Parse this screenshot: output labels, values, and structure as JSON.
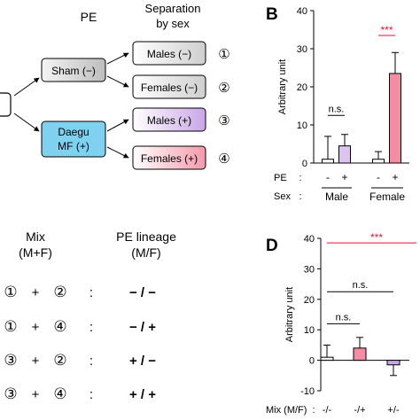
{
  "flow": {
    "title_pe": "PE",
    "title_sep_line1": "Separation",
    "title_sep_line2": "by sex",
    "sham": "Sham (−)",
    "daegu_line1": "Daegu",
    "daegu_line2": "MF (+)",
    "groups": [
      {
        "label": "Males  (−)",
        "num": "①",
        "color": "#d8d8d8"
      },
      {
        "label": "Females (−)",
        "num": "②",
        "color": "#d8d8d8"
      },
      {
        "label": "Males (+)",
        "num": "③",
        "color": "#c9a6e6"
      },
      {
        "label": "Females (+)",
        "num": "④",
        "color": "#f29aab"
      }
    ]
  },
  "mix_table": {
    "header_mix_line1": "Mix",
    "header_mix_line2": "(M+F)",
    "header_lineage_line1": "PE lineage",
    "header_lineage_line2": "(M/F)",
    "rows": [
      {
        "a": "①",
        "plus": "+",
        "b": "②",
        "colon": ":",
        "lineage": "− / −"
      },
      {
        "a": "①",
        "plus": "+",
        "b": "④",
        "colon": ":",
        "lineage": "− / +"
      },
      {
        "a": "③",
        "plus": "+",
        "b": "②",
        "colon": ":",
        "lineage": "+ / −"
      },
      {
        "a": "③",
        "plus": "+",
        "b": "④",
        "colon": ":",
        "lineage": "+ / +"
      }
    ]
  },
  "chart_data": [
    {
      "panel": "B",
      "type": "bar",
      "ylabel": "Arbitrary unit",
      "ylim": [
        0,
        40
      ],
      "yticks": [
        0,
        10,
        20,
        30,
        40
      ],
      "categories": [
        "Male -",
        "Male +",
        "Female -",
        "Female +"
      ],
      "values": [
        1,
        4.5,
        1,
        23.5
      ],
      "errors": [
        6,
        3,
        2,
        5.5
      ],
      "colors": [
        "#ffffff",
        "#dcc3f0",
        "#ffffff",
        "#f48ca4"
      ],
      "row1_label": "PE",
      "row1_colon": ":",
      "row1_values": [
        "-",
        "+",
        "-",
        "+"
      ],
      "row2_label": "Sex",
      "row2_colon": ":",
      "groups": [
        "Male",
        "Female"
      ],
      "annotations": [
        {
          "text": "n.s.",
          "color": "#000000"
        },
        {
          "text": "***",
          "color": "#e8112d"
        }
      ]
    },
    {
      "panel": "D",
      "type": "bar",
      "ylabel": "Arbitrary unit",
      "ylim": [
        -10,
        40
      ],
      "yticks": [
        -10,
        0,
        10,
        20,
        30,
        40
      ],
      "categories": [
        "-/-",
        "-/+",
        "+/-"
      ],
      "values": [
        1,
        4,
        -1.5
      ],
      "errors": [
        4,
        3.5,
        3.5
      ],
      "colors": [
        "#ffffff",
        "#f48ca4",
        "#c9a6e6"
      ],
      "xaxis_label": "Mix (M/F)",
      "xaxis_colon": ":",
      "annotations": [
        {
          "text": "***",
          "color": "#e8112d"
        },
        {
          "text": "n.s.",
          "color": "#000000"
        },
        {
          "text": "n.s.",
          "color": "#000000"
        }
      ]
    }
  ],
  "panel_labels": {
    "b": "B",
    "d": "D"
  }
}
